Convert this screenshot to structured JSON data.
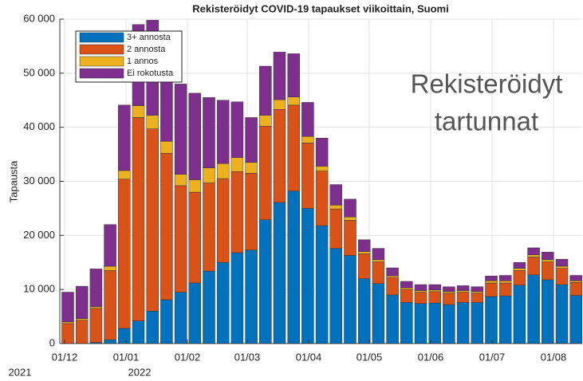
{
  "chart_data": {
    "type": "stacked_bar",
    "title": "Rekisteröidyt COVID-19 tapaukset viikoittain, Suomi",
    "ylabel": "Tapausta",
    "annotations": [
      "Rekisteröidyt",
      "tartunnat"
    ],
    "x_tick_labels": [
      "01/12",
      "01/01",
      "01/02",
      "01/03",
      "01/04",
      "01/05",
      "01/06",
      "01/07",
      "01/08"
    ],
    "year_labels": [
      "2021",
      "2022"
    ],
    "categories": [
      null,
      null,
      null,
      null,
      null,
      null,
      null,
      null,
      null,
      null,
      null,
      null,
      null,
      null,
      null,
      null,
      null,
      null,
      null,
      null,
      null,
      null,
      null,
      null,
      null,
      null,
      null,
      null,
      null,
      null,
      null,
      null,
      null,
      null,
      null,
      null,
      null
    ],
    "series": [
      {
        "name": "3+ annosta",
        "color": "#0072bd",
        "values": [
          0,
          0,
          200,
          700,
          2800,
          4200,
          6000,
          8100,
          9500,
          11200,
          13400,
          15000,
          16800,
          17300,
          22900,
          26100,
          28200,
          25000,
          21800,
          17600,
          16300,
          12000,
          11100,
          9000,
          7600,
          7400,
          7500,
          7200,
          7600,
          7600,
          8700,
          8800,
          10800,
          12700,
          11800,
          10900,
          8900
        ]
      },
      {
        "name": "2 annosta",
        "color": "#d95319",
        "values": [
          3700,
          4300,
          6300,
          12800,
          27600,
          37600,
          33700,
          27100,
          19700,
          16800,
          16300,
          15500,
          15000,
          14200,
          17300,
          17200,
          15900,
          12100,
          10100,
          7300,
          6500,
          4600,
          4000,
          3200,
          2400,
          2100,
          2100,
          2100,
          1900,
          1700,
          2500,
          2400,
          2700,
          3300,
          3300,
          3000,
          2400
        ]
      },
      {
        "name": "1 annos",
        "color": "#edb120",
        "values": [
          300,
          300,
          300,
          800,
          1600,
          2200,
          2500,
          2200,
          2100,
          2300,
          2800,
          2800,
          2600,
          2000,
          2000,
          1800,
          1500,
          1200,
          900,
          700,
          600,
          400,
          400,
          300,
          300,
          300,
          300,
          300,
          300,
          300,
          400,
          400,
          400,
          400,
          400,
          400,
          300
        ]
      },
      {
        "name": "Ei rokotusta",
        "color": "#7e2f8e",
        "values": [
          5500,
          6000,
          7000,
          7700,
          12100,
          15000,
          17600,
          12600,
          16700,
          16000,
          13000,
          11700,
          10300,
          8300,
          9100,
          8800,
          8000,
          6300,
          5200,
          3800,
          3300,
          2200,
          2100,
          1500,
          1200,
          1100,
          1000,
          900,
          900,
          900,
          900,
          1000,
          1100,
          1300,
          1400,
          1300,
          1000
        ]
      }
    ],
    "ylim": [
      0,
      60000
    ],
    "yticks": [
      0,
      {
        "value": 10000,
        "label": "10 000"
      },
      {
        "value": 20000,
        "label": "20 000"
      },
      {
        "value": 30000,
        "label": "30 000"
      },
      {
        "value": 40000,
        "label": "40 000"
      },
      {
        "value": 50000,
        "label": "50 000"
      },
      {
        "value": 60000,
        "label": "60 000"
      }
    ],
    "grid": true
  }
}
